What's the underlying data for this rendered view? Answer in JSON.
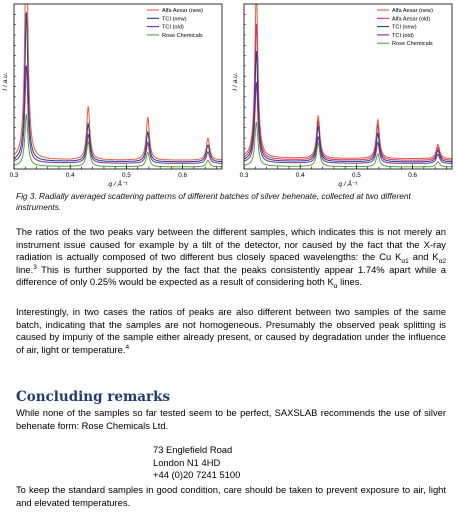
{
  "chart_data": [
    {
      "type": "line",
      "xlabel": "q / Å⁻¹",
      "ylabel": "I / a.u.",
      "xlim": [
        0.3,
        0.67
      ],
      "x_ticks": [
        "0.3",
        "0.4",
        "0.5",
        "0.6"
      ],
      "legend_position": "top-right",
      "peak_positions": [
        0.322,
        0.432,
        0.538,
        0.645
      ],
      "series": [
        {
          "name": "Alfa Aesar (new)",
          "color": "#f05a3a",
          "offset": 0.5,
          "peak_heights": [
            18.0,
            4.1,
            3.3,
            1.7
          ]
        },
        {
          "name": "TCI (new)",
          "color": "#1f3f8f",
          "offset": 0.38,
          "peak_heights": [
            11.5,
            2.9,
            2.3,
            1.3
          ]
        },
        {
          "name": "TCI (old)",
          "color": "#7a2e8c",
          "offset": 0.26,
          "peak_heights": [
            7.5,
            2.2,
            1.6,
            0.9
          ]
        },
        {
          "name": "Rose Chemicals",
          "color": "#4fa83c",
          "offset": 0.0,
          "peak_heights": [
            4.0,
            1.9,
            1.1,
            0.5
          ]
        }
      ]
    },
    {
      "type": "line",
      "xlabel": "q / Å⁻¹",
      "ylabel": "I / a.u.",
      "xlim": [
        0.3,
        0.67
      ],
      "x_ticks": [
        "0.3",
        "0.4",
        "0.5",
        "0.6"
      ],
      "legend_position": "top-right",
      "peak_positions": [
        0.322,
        0.432,
        0.538,
        0.645
      ],
      "series": [
        {
          "name": "Alfa Aesar (new)",
          "color": "#f05a3a",
          "offset": 0.62,
          "peak_heights": [
            13.0,
            3.3,
            3.0,
            1.1
          ]
        },
        {
          "name": "Alfa Aesar (old)",
          "color": "#d0306a",
          "offset": 0.5,
          "peak_heights": [
            10.5,
            3.0,
            2.7,
            1.0
          ]
        },
        {
          "name": "TCI (new)",
          "color": "#1f3f8f",
          "offset": 0.38,
          "peak_heights": [
            8.5,
            2.7,
            2.2,
            0.9
          ]
        },
        {
          "name": "TCI (old)",
          "color": "#7a2e8c",
          "offset": 0.26,
          "peak_heights": [
            6.2,
            2.0,
            1.6,
            0.7
          ]
        },
        {
          "name": "Rose Chemicals",
          "color": "#4fa83c",
          "offset": 0.0,
          "peak_heights": [
            3.4,
            1.8,
            1.0,
            0.4
          ]
        }
      ]
    }
  ],
  "caption": "Fig 3. Radially averaged scattering patterns of different batches of silver behenate, collected at two different instruments.",
  "paragraph1": {
    "part1": "The ratios of the two peaks vary between the different samples, which indicates this is not merely an instrument issue caused for example by a tilt of the detector, nor caused by the fact that the X-ray radiation is actually composed of two different bus closely spaced wavelengths: the Cu K",
    "sub1": "α1",
    "part2": " and K",
    "sub2": "α2",
    "part3": " line.",
    "sup1": "3",
    "part4": " This is further supported by the fact that the peaks consistently appear 1.74% apart while a difference of only 0.25% would be expected as a result of considering both K",
    "sub3": "α",
    "part5": " lines."
  },
  "paragraph2": {
    "text": "Interestingly, in two cases the ratios of peaks are also different between two samples of the same batch, indicating that the samples are not homogeneous. Presumably the observed peak splitting is caused by impuriy of the sample either already present, or caused by degradation under the influence of air, light or temperature.",
    "sup": "4"
  },
  "heading": "Concluding remarks",
  "paragraph3": "While none of the samples so far tested seem to be perfect, SAXSLAB recommends the use of silver behenate form: Rose Chemicals Ltd.",
  "address": [
    "73 Englefield Road",
    "London N1 4HD",
    "+44 (0)20 7241 5100"
  ],
  "paragraph4": "To keep the standard samples in good condition, care should be taken to prevent exposure to air, light and elevated temperatures."
}
